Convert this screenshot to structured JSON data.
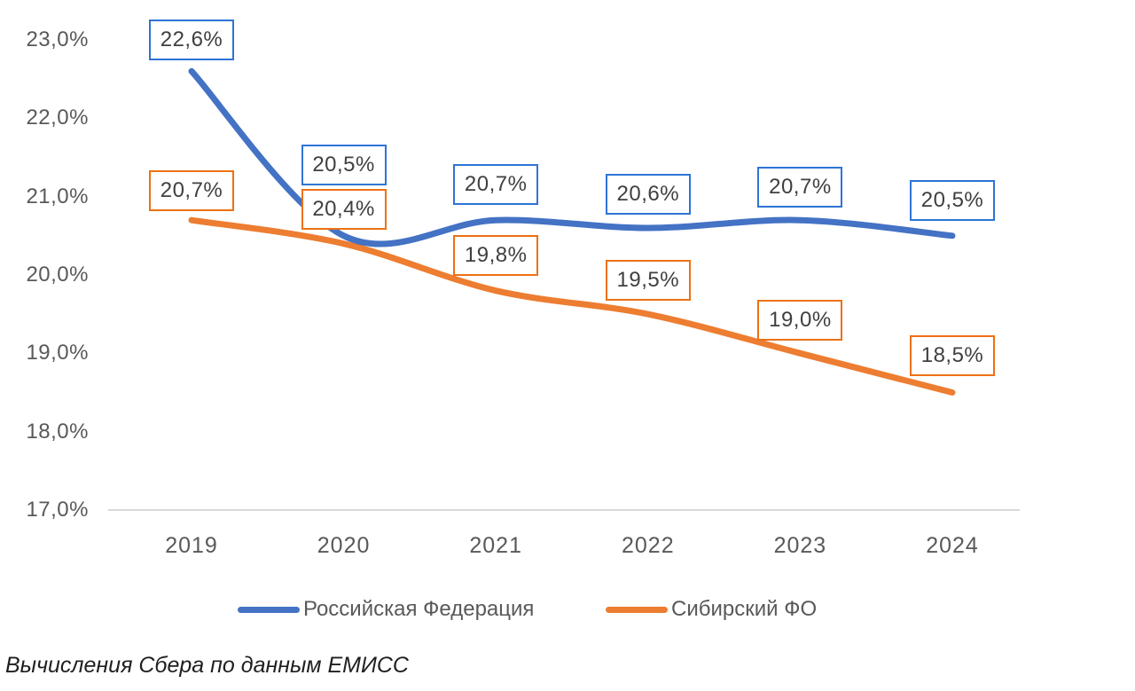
{
  "chart_data": {
    "type": "line",
    "smooth": true,
    "grid": false,
    "legend_position": "bottom",
    "categories": [
      "2019",
      "2020",
      "2021",
      "2022",
      "2023",
      "2024"
    ],
    "series": [
      {
        "id": "rf",
        "name": "Российская Федерация",
        "color": "#4472C4",
        "label_border_color": "#2E74D6",
        "values": [
          22.6,
          20.5,
          20.7,
          20.6,
          20.7,
          20.5
        ],
        "labels": [
          "22,6%",
          "20,5%",
          "20,7%",
          "20,6%",
          "20,7%",
          "20,5%"
        ],
        "label_dy": [
          -35,
          -80,
          -40,
          -38,
          -37,
          -40
        ]
      },
      {
        "id": "sfo",
        "name": "Сибирский ФО",
        "color": "#ED7D31",
        "label_border_color": "#ED7114",
        "values": [
          20.7,
          20.4,
          19.8,
          19.5,
          19.0,
          18.5
        ],
        "labels": [
          "20,7%",
          "20,4%",
          "19,8%",
          "19,5%",
          "19,0%",
          "18,5%"
        ],
        "label_dy": [
          -33,
          -39,
          -40,
          -38,
          -37,
          -42
        ]
      }
    ],
    "y_axis": {
      "tick_labels": [
        "23,0%",
        "22,0%",
        "21,0%",
        "20,0%",
        "19,0%",
        "18,0%",
        "17,0%"
      ],
      "tick_values": [
        23,
        22,
        21,
        20,
        19,
        18,
        17
      ],
      "range": [
        17,
        23
      ]
    }
  },
  "footnote": "Вычисления Сбера по данным ЕМИСС",
  "colors": {
    "background": "#FFFFFF",
    "axis_text": "#595959",
    "data_label_text": "#404040",
    "axis_line": "#D9D9D9"
  }
}
